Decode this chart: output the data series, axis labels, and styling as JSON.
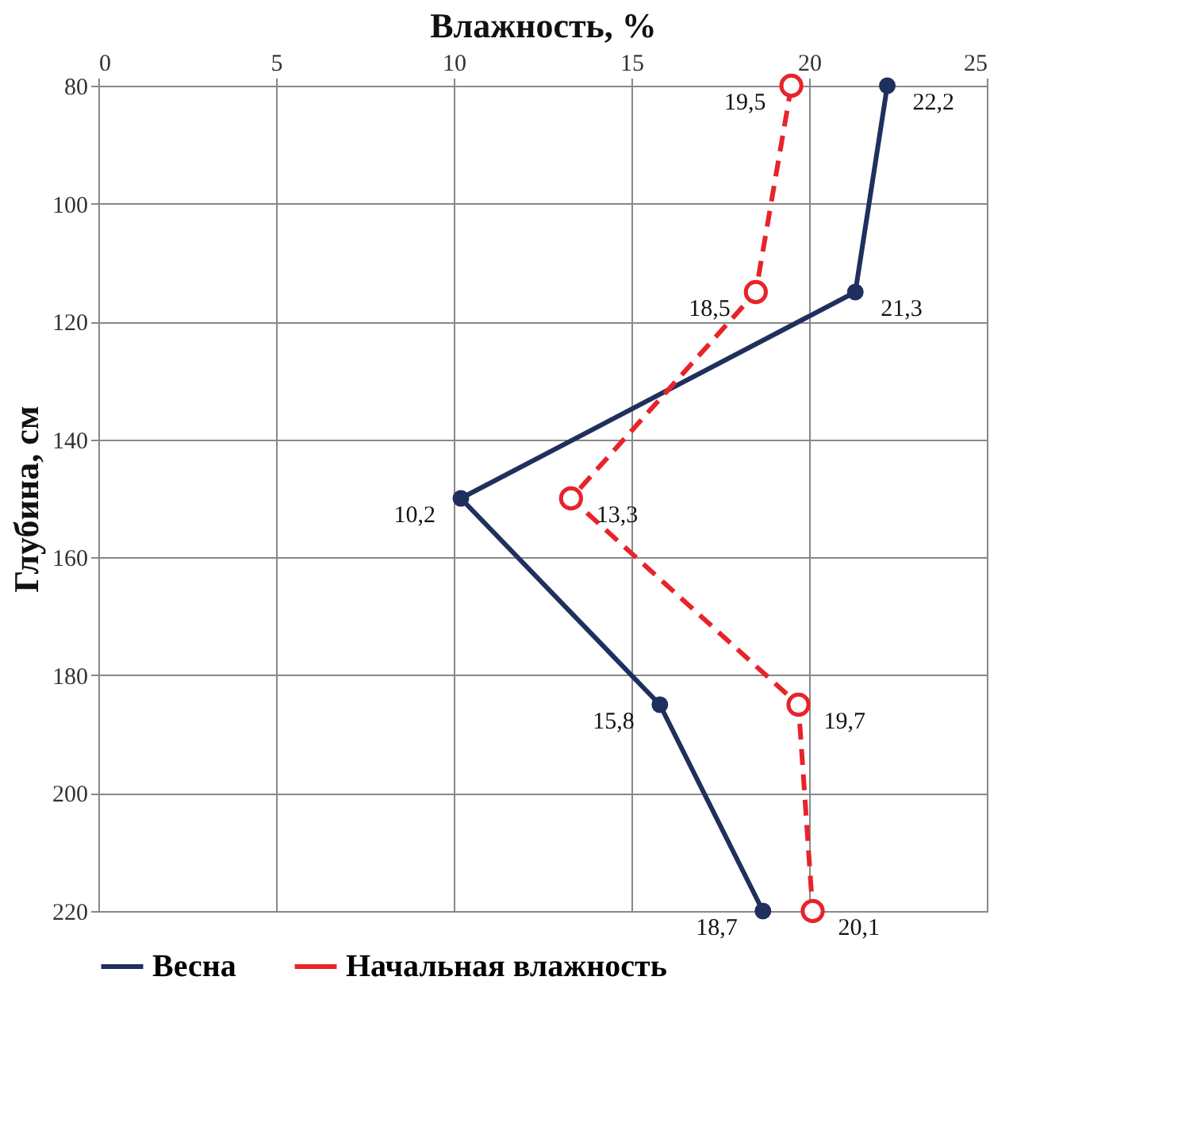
{
  "chart_data": {
    "type": "line",
    "orientation": "horizontal",
    "xlabel": "Влажность, %",
    "ylabel": "Глубина, см",
    "x": [
      80,
      115,
      150,
      185,
      220
    ],
    "xlim": [
      0,
      25
    ],
    "xticks": [
      0,
      5,
      10,
      15,
      20,
      25
    ],
    "ylim": [
      220,
      80
    ],
    "yticks": [
      80,
      100,
      120,
      140,
      160,
      180,
      200,
      220
    ],
    "grid": true,
    "legend": "bottom",
    "marker": "circle",
    "series": [
      {
        "name": "Весна",
        "color": "#1f2f5e",
        "line_style": "solid",
        "values": [
          22.2,
          21.3,
          10.2,
          15.8,
          18.7
        ],
        "value_labels": [
          "22,2",
          "21,3",
          "10,2",
          "15,8",
          "18,7"
        ]
      },
      {
        "name": "Начальная влажность",
        "color": "#e8232a",
        "line_style": "dashed",
        "values": [
          19.5,
          18.5,
          13.3,
          19.7,
          20.1
        ],
        "value_labels": [
          "19,5",
          "18,5",
          "13,3",
          "19,7",
          "20,1"
        ]
      }
    ]
  }
}
